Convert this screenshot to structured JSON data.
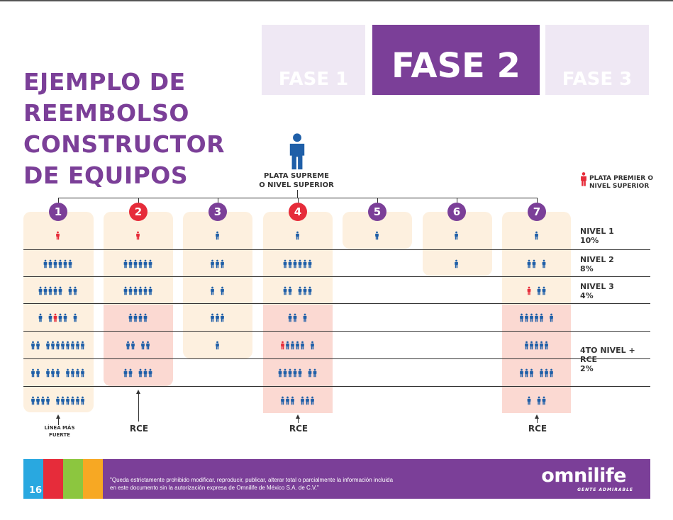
{
  "title_lines": [
    "EJEMPLO DE",
    "REEMBOLSO",
    "CONSTRUCTOR",
    "DE EQUIPOS"
  ],
  "tabs": [
    {
      "label": "FASE 1",
      "active": false
    },
    {
      "label": "FASE 2",
      "active": true
    },
    {
      "label": "FASE 3",
      "active": false
    }
  ],
  "top": {
    "lines": [
      "PLATA SUPREME",
      "O NIVEL SUPERIOR"
    ]
  },
  "legend": {
    "lines": [
      "PLATA PREMIER O",
      "NIVEL SUPERIOR"
    ]
  },
  "columns": [
    {
      "label": "1",
      "color": "purple"
    },
    {
      "label": "2",
      "color": "red"
    },
    {
      "label": "3",
      "color": "purple"
    },
    {
      "label": "4",
      "color": "red"
    },
    {
      "label": "5",
      "color": "purple"
    },
    {
      "label": "6",
      "color": "purple"
    },
    {
      "label": "7",
      "color": "purple"
    }
  ],
  "levels": [
    {
      "lines": [
        "NIVEL 1",
        "10%"
      ]
    },
    {
      "lines": [
        "NIVEL 2",
        "8%"
      ]
    },
    {
      "lines": [
        "NIVEL 3",
        "4%"
      ]
    },
    {
      "lines": [
        "4TO NIVEL +",
        "RCE",
        "2%"
      ]
    }
  ],
  "grid": [
    [
      [
        "r"
      ],
      [
        "r"
      ],
      [
        "b"
      ],
      [
        "b"
      ],
      [
        "b"
      ],
      [
        "b"
      ],
      [
        "b"
      ]
    ],
    [
      [
        "bbbbbb"
      ],
      [
        "bbbbbb"
      ],
      [
        "bbb"
      ],
      [
        "bbbbbb"
      ],
      [],
      [
        "b"
      ],
      [
        "bb",
        "b"
      ]
    ],
    [
      [
        "bbbbb",
        "bb"
      ],
      [
        "bbbbbb"
      ],
      [
        "b",
        "b"
      ],
      [
        "bb",
        "bbb"
      ],
      [],
      [],
      [
        "r",
        "bb"
      ]
    ],
    [
      [
        "b",
        "brbb",
        "b"
      ],
      [
        "bbbb"
      ],
      [
        "bbb"
      ],
      [
        "bb",
        "b"
      ],
      [],
      [],
      [
        "bbbbb",
        "b"
      ]
    ],
    [
      [
        "bb",
        "bbbbbbbb"
      ],
      [
        "bb",
        "bb"
      ],
      [
        "b"
      ],
      [
        "rbbbb",
        "b"
      ],
      [],
      [],
      [
        "bbbbb"
      ]
    ],
    [
      [
        "bb",
        "bbb",
        "bbbb"
      ],
      [
        "bb",
        "bbb"
      ],
      [],
      [
        "bbbbb",
        "bb"
      ],
      [],
      [],
      [
        "bbb",
        "bbb"
      ]
    ],
    [
      [
        "bbbb",
        "bbbbbb"
      ],
      [],
      [],
      [
        "bbb",
        "bbb"
      ],
      [],
      [],
      [
        "b",
        "bb"
      ]
    ]
  ],
  "bottom_labels": {
    "linea": [
      "LÍNEA MÁS",
      "FUERTE"
    ],
    "rce": "RCE"
  },
  "footer": {
    "page": "16",
    "disclaimer": [
      "\"Queda estrictamente prohibido modificar, reproducir, publicar, alterar total o parcialmente la información incluida",
      "en este documento sin la autorización expresa de Omnilife de México S.A. de C.V.\""
    ],
    "logo": "omnilife",
    "tagline": "GENTE ADMIRABLE"
  },
  "colors": {
    "purple": "#7b3f98",
    "red": "#e62c3a",
    "blue": "#1f5fa8",
    "cream": "#fdf0df",
    "pink": "#fbd9d2",
    "tab_light": "#efe8f4",
    "cyan": "#29a8e0",
    "green": "#8cc63f",
    "orange": "#f7a823"
  }
}
